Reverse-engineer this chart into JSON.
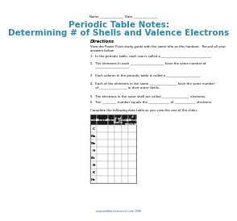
{
  "title_line1": "Periodic Table Notes:",
  "title_line2": "Determining # of Shells and Valence Electrons",
  "title_color": "#2E86AB",
  "directions_label": "Directions",
  "directions_text": "View the Power Point study guide with the same title as this handout.  Record all your\nanswers below.",
  "questions": [
    "1.  In the periodic table, each row is called a _______________________________.",
    "2.  The elements in each _____________________ have the same number of\n     _____________________.",
    "3.  Each column in the periodic table is called a _____________________.",
    "4.  Each of the elements in the same _________________ have the same number\n     of _________________ in their outer shells.",
    "5.  The electrons in the outer shell are called _________________ electrons.",
    "6.  The _________ number equals the _____________ of _____________ electrons."
  ],
  "table_note": "Complete the following data table as you view the rest of the slides.",
  "col_headers": [
    "Symbol",
    "Element",
    "Period",
    "# of\nShells",
    "Group #",
    "#\nValence\nelectrons"
  ],
  "col_header_bg": "#1a1a1a",
  "col_header_color": "#ffffff",
  "row_symbols": [
    "C",
    "Na",
    "Ne",
    "H",
    "Be",
    "N",
    "K",
    "He"
  ],
  "name_line_top": "Name _______________",
  "date_line_top": "Date _______________",
  "footer_text": "www.middleschoolscience.com 2008",
  "bg_color": "#ffffff",
  "font_size_title": 7.5,
  "font_size_body": 3.5,
  "font_size_small": 2.8
}
